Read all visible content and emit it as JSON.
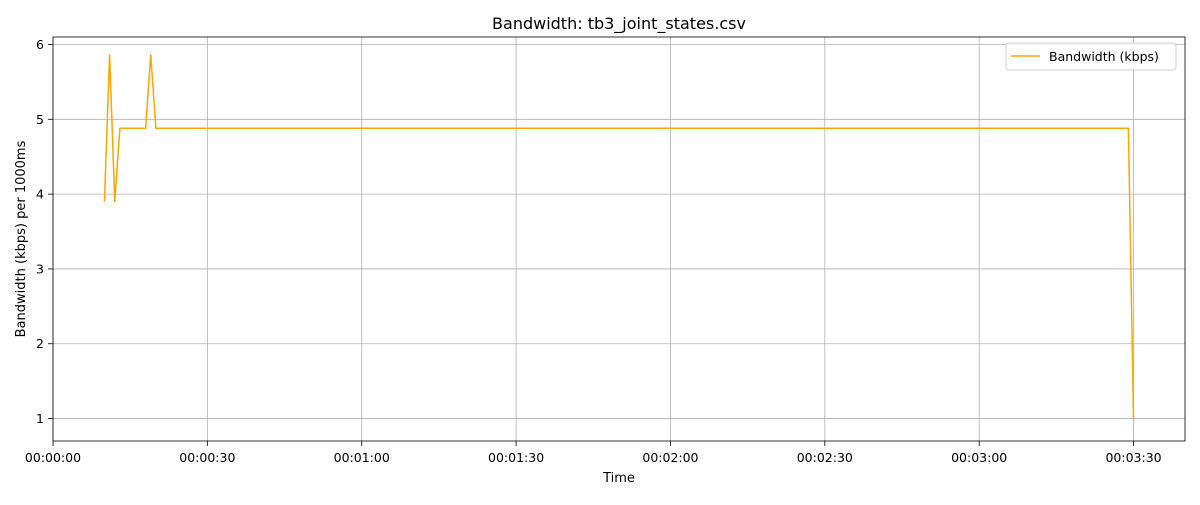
{
  "chart_data": {
    "type": "line",
    "title": "Bandwidth: tb3_joint_states.csv",
    "xlabel": "Time",
    "ylabel": "Bandwidth (kbps) per 1000ms",
    "xlim": [
      0,
      220
    ],
    "ylim": [
      0.7,
      6.1
    ],
    "x_ticks": [
      0,
      30,
      60,
      90,
      120,
      150,
      180,
      210
    ],
    "x_tick_labels": [
      "00:00:00",
      "00:00:30",
      "00:01:00",
      "00:01:30",
      "00:02:00",
      "00:02:30",
      "00:03:00",
      "00:03:30"
    ],
    "y_ticks": [
      1,
      2,
      3,
      4,
      5,
      6
    ],
    "y_tick_labels": [
      "1",
      "2",
      "3",
      "4",
      "5",
      "6"
    ],
    "grid": true,
    "legend_position": "top-right",
    "series": [
      {
        "name": "Bandwidth (kbps)",
        "color": "#ffa500",
        "x": [
          10,
          11,
          12,
          13,
          18,
          19,
          20,
          209,
          210
        ],
        "y": [
          3.9,
          5.86,
          3.9,
          4.88,
          4.88,
          5.86,
          4.88,
          4.88,
          0.98
        ]
      }
    ]
  }
}
